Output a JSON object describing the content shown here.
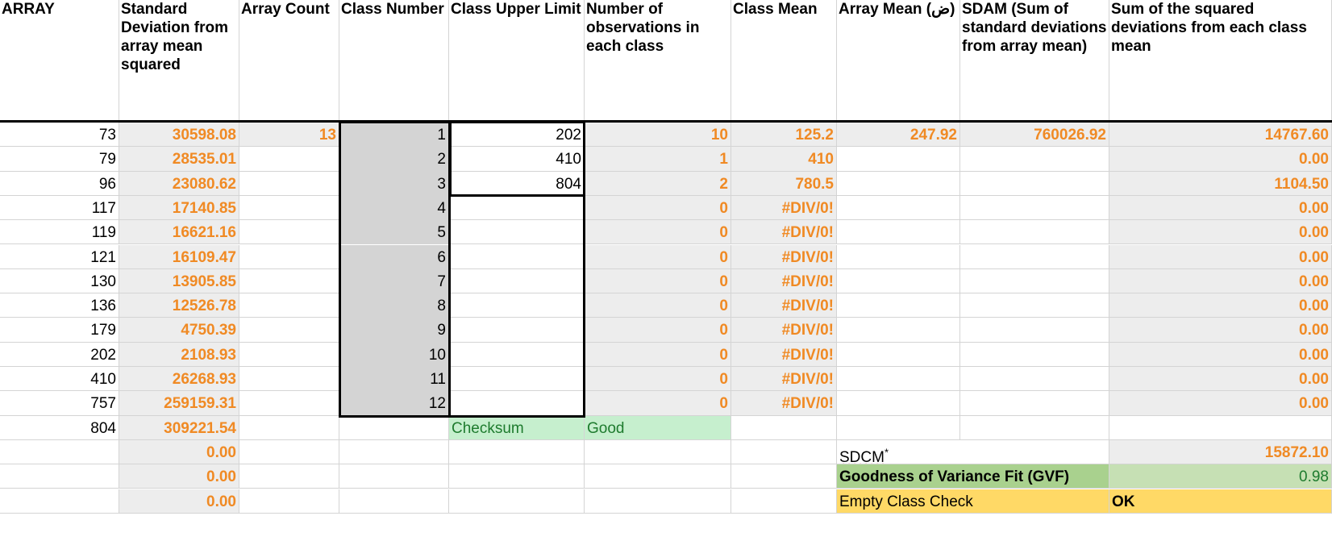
{
  "headers": {
    "array": "ARRAY",
    "sd": "Standard Deviation from array mean squared",
    "count": "Array Count",
    "class_number": "Class Number",
    "class_upper": "Class Upper Limit",
    "observations": "Number of observations in each class",
    "class_mean": "Class Mean",
    "array_mean": "Array Mean (ض)",
    "sdam": "SDAM (Sum of standard deviations from array mean)",
    "sdcm_col": "Sum of the squared deviations from each class mean"
  },
  "array_values": [
    "73",
    "79",
    "96",
    "117",
    "119",
    "121",
    "130",
    "136",
    "179",
    "202",
    "410",
    "757",
    "804",
    "",
    "",
    ""
  ],
  "sd_values": [
    "30598.08",
    "28535.01",
    "23080.62",
    "17140.85",
    "16621.16",
    "16109.47",
    "13905.85",
    "12526.78",
    "4750.39",
    "2108.93",
    "26268.93",
    "259159.31",
    "309221.54",
    "0.00",
    "0.00",
    "0.00"
  ],
  "array_count": "13",
  "class_numbers": [
    "1",
    "2",
    "3",
    "4",
    "5",
    "6",
    "7",
    "8",
    "9",
    "10",
    "11",
    "12"
  ],
  "class_upper_limits": [
    "202",
    "410",
    "804",
    "",
    "",
    "",
    "",
    "",
    "",
    "",
    "",
    ""
  ],
  "observations": [
    "10",
    "1",
    "2",
    "0",
    "0",
    "0",
    "0",
    "0",
    "0",
    "0",
    "0",
    "0"
  ],
  "class_means": [
    "125.2",
    "410",
    "780.5",
    "#DIV/0!",
    "#DIV/0!",
    "#DIV/0!",
    "#DIV/0!",
    "#DIV/0!",
    "#DIV/0!",
    "#DIV/0!",
    "#DIV/0!",
    "#DIV/0!"
  ],
  "array_mean_value": "247.92",
  "sdam_value": "760026.92",
  "sq_dev_values": [
    "14767.60",
    "0.00",
    "1104.50",
    "0.00",
    "0.00",
    "0.00",
    "0.00",
    "0.00",
    "0.00",
    "0.00",
    "0.00",
    "0.00"
  ],
  "checksum": {
    "label": "Checksum",
    "value": "Good"
  },
  "sdcm": {
    "label": "SDCM",
    "asterisk": "*",
    "value": "15872.10"
  },
  "gvf": {
    "label": "Goodness of Variance Fit (GVF)",
    "value": "0.98"
  },
  "empty_class": {
    "label": "Empty Class Check",
    "value": "OK"
  }
}
